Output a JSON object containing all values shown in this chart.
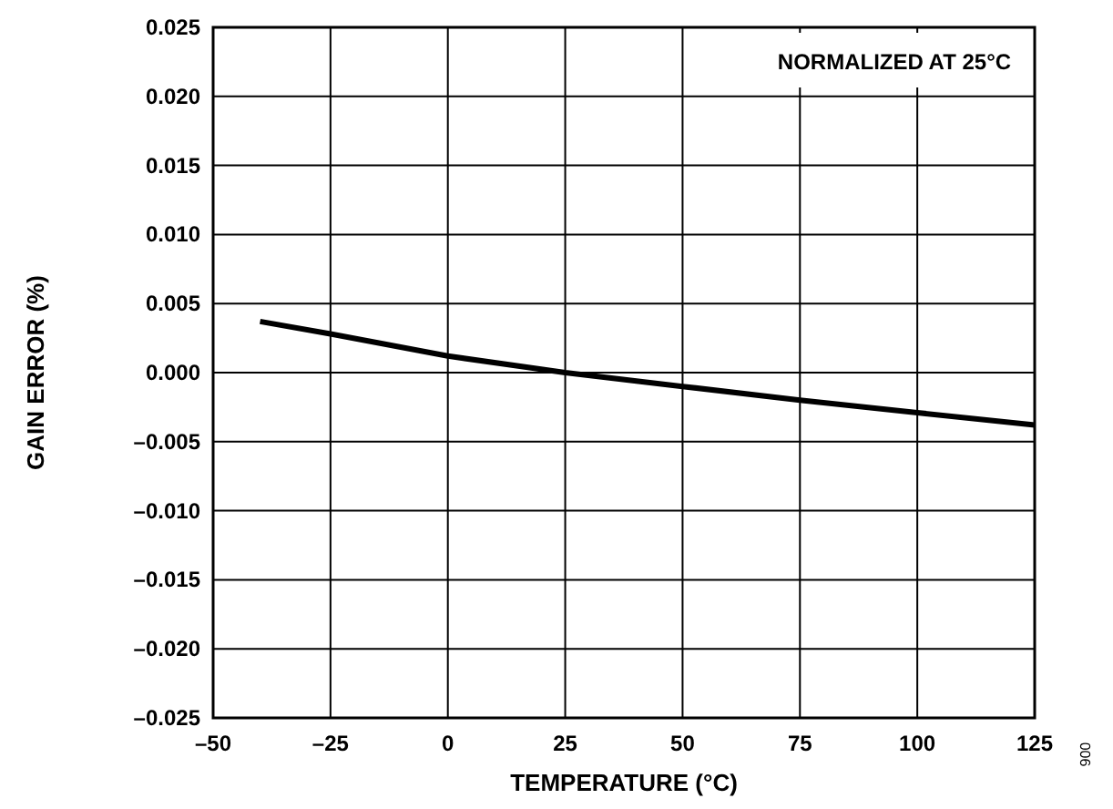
{
  "chart_data": {
    "type": "line",
    "xlabel": "TEMPERATURE (°C)",
    "ylabel": "GAIN ERROR (%)",
    "annotations": [
      "NORMALIZED AT 25°C",
      "006"
    ],
    "x": [
      -40,
      -25,
      0,
      25,
      50,
      75,
      100,
      125
    ],
    "series": [
      {
        "color": "#000000",
        "values": [
          0.0037,
          0.0028,
          0.0012,
          0,
          -0.001,
          -0.002,
          -0.0029,
          -0.0038
        ]
      }
    ],
    "xlim": [
      -50,
      125
    ],
    "ylim": [
      -0.025,
      0.025
    ],
    "xticks": [
      {
        "value": -50,
        "label": "–50"
      },
      {
        "value": -25,
        "label": "–25"
      },
      0,
      25,
      50,
      75,
      100,
      125
    ],
    "yticks": [
      {
        "value": -0.025,
        "label": "–0.025"
      },
      {
        "value": -0.02,
        "label": "–0.020"
      },
      {
        "value": -0.015,
        "label": "–0.015"
      },
      {
        "value": -0.01,
        "label": "–0.010"
      },
      {
        "value": -0.005,
        "label": "–0.005"
      },
      {
        "value": 0,
        "label": "0.000"
      },
      0.005,
      {
        "value": 0.01,
        "label": "0.010"
      },
      0.015,
      {
        "value": 0.02,
        "label": "0.020"
      },
      0.025
    ],
    "grid": true,
    "marker": "none",
    "line_style": "solid"
  }
}
